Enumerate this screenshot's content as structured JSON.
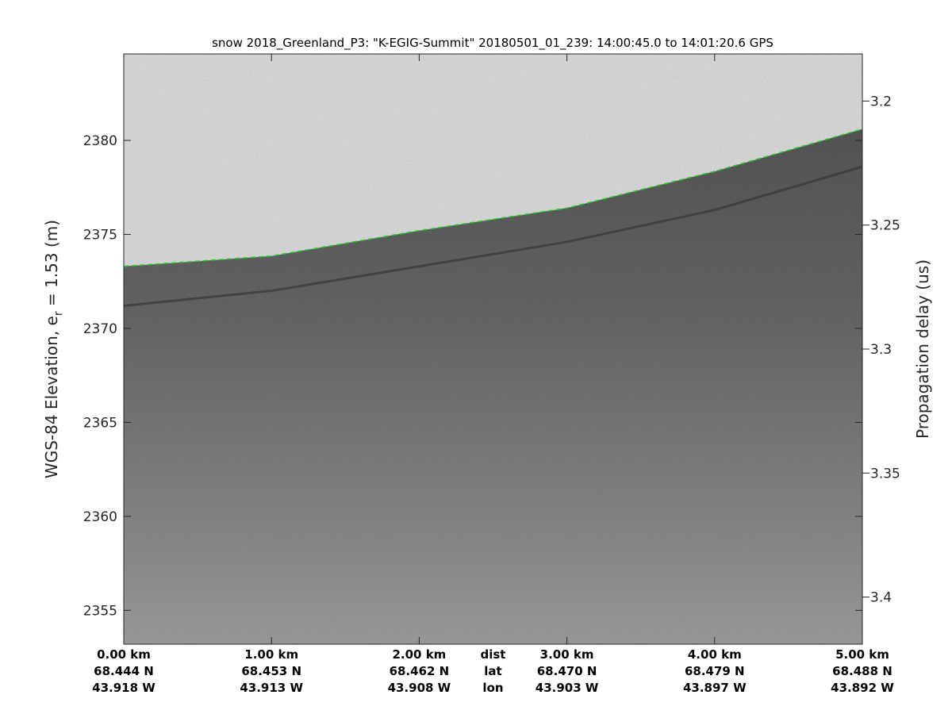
{
  "chart_data": {
    "type": "heatmap",
    "title": "snow 2018_Greenland_P3: \"K-EGIG-Summit\"  20180501_01_239: 14:00:45.0 to 14:01:20.6 GPS",
    "ylabel_left": "WGS-84 Elevation, e",
    "ylabel_left_sub": "r",
    "ylabel_left_suffix": " = 1.53 (m)",
    "ylabel_right": "Propagation delay (us)",
    "ylim_left": [
      2353.2,
      2384.6
    ],
    "yticks_left": [
      2380,
      2375,
      2370,
      2365,
      2360,
      2355
    ],
    "ylim_right": [
      3.419,
      3.181
    ],
    "yticks_right": [
      3.2,
      3.25,
      3.3,
      3.35,
      3.4
    ],
    "xlim_km": [
      0,
      5
    ],
    "x_rows": {
      "dist": {
        "label": "dist",
        "values": [
          "0.00 km",
          "1.00 km",
          "2.00 km",
          "3.00 km",
          "4.00 km",
          "5.00 km"
        ]
      },
      "lat": {
        "label": "lat",
        "values": [
          "68.444 N",
          "68.453 N",
          "68.462 N",
          "68.470 N",
          "68.479 N",
          "68.488 N"
        ]
      },
      "lon": {
        "label": "lon",
        "values": [
          "43.918 W",
          "43.913 W",
          "43.908 W",
          "43.903 W",
          "43.897 W",
          "43.892 W"
        ]
      }
    },
    "surface_layer": {
      "color": "#22cc22",
      "style": "dashed",
      "x_km": [
        0,
        1,
        2,
        3,
        4,
        5
      ],
      "elevation_m": [
        2373.3,
        2373.85,
        2375.2,
        2376.4,
        2378.35,
        2380.6
      ]
    },
    "internal_layer": {
      "x_km": [
        0,
        1,
        2,
        3,
        4,
        5
      ],
      "elevation_m": [
        2371.2,
        2372.0,
        2373.3,
        2374.6,
        2376.3,
        2378.6
      ]
    },
    "colormap": "gray"
  }
}
